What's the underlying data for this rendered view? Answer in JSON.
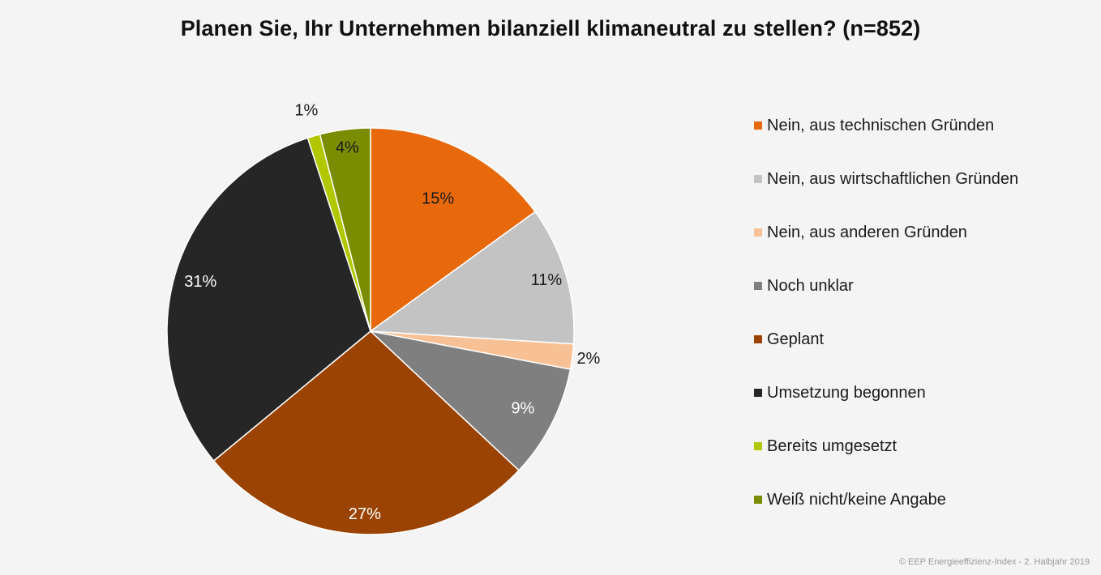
{
  "chart_data": {
    "type": "pie",
    "title": "Planen Sie, Ihr Unternehmen bilanziell klimaneutral zu stellen? (n=852)",
    "unit": "%",
    "legend_position": "right",
    "slices": [
      {
        "name": "Nein, aus technischen Gründen",
        "value": 15,
        "label": "15%",
        "color": "#e8690b",
        "label_color": "#1a1a1a"
      },
      {
        "name": "Nein, aus wirtschaftlichen Gründen",
        "value": 11,
        "label": "11%",
        "color": "#c3c3c3",
        "label_color": "#1a1a1a"
      },
      {
        "name": "Nein, aus anderen Gründen",
        "value": 2,
        "label": "2%",
        "color": "#f8c195",
        "label_color": "#1a1a1a"
      },
      {
        "name": "Noch unklar",
        "value": 9,
        "label": "9%",
        "color": "#7f7f7f",
        "label_color": "#ffffff"
      },
      {
        "name": "Geplant",
        "value": 27,
        "label": "27%",
        "color": "#9a4303",
        "label_color": "#ffffff"
      },
      {
        "name": "Umsetzung begonnen",
        "value": 31,
        "label": "31%",
        "color": "#262626",
        "label_color": "#ffffff"
      },
      {
        "name": "Bereits umgesetzt",
        "value": 1,
        "label": "1%",
        "color": "#b1c801",
        "label_color": "#1a1a1a"
      },
      {
        "name": "Weiß nicht/keine Angabe",
        "value": 4,
        "label": "4%",
        "color": "#7a8c00",
        "label_color": "#1a1a1a"
      }
    ]
  },
  "footer": {
    "copyright": "© EEP Energieeffizienz-Index - 2. Halbjahr 2019"
  }
}
